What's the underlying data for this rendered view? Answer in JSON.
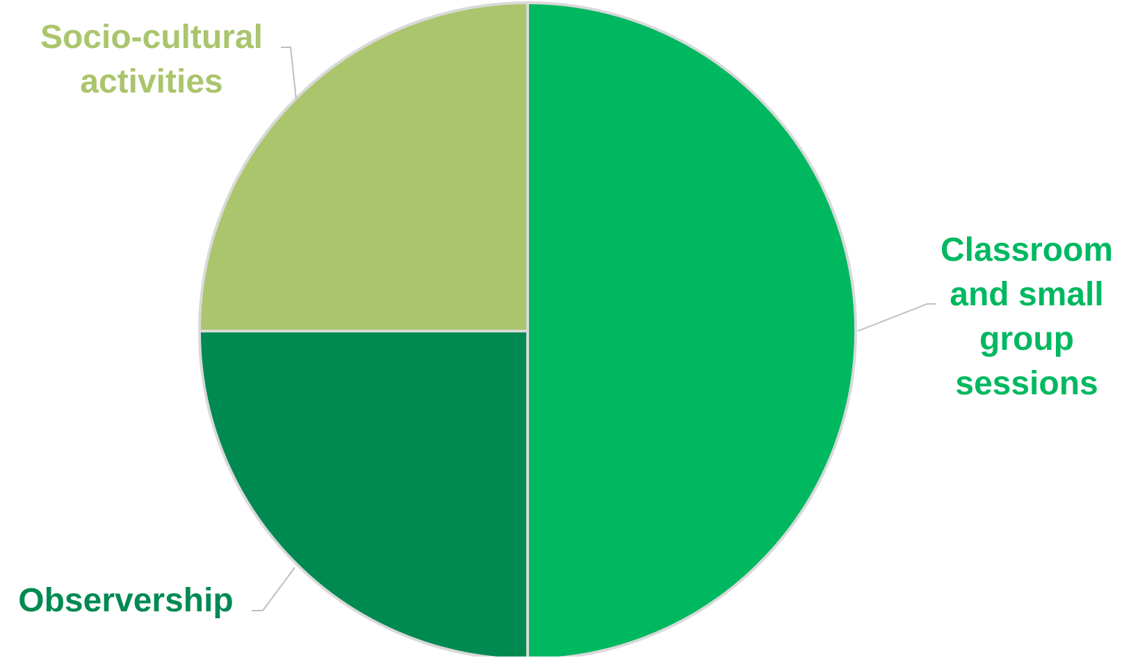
{
  "chart_data": {
    "type": "pie",
    "title": "",
    "start_angle_deg": 0,
    "direction": "clockwise",
    "show_legend": false,
    "slices": [
      {
        "label": "Classroom and small group sessions",
        "label_lines": [
          "Classroom",
          "and small",
          "group",
          "sessions"
        ],
        "value": 50,
        "color": "#00B860"
      },
      {
        "label": "Observership",
        "label_lines": [
          "Observership"
        ],
        "value": 25,
        "color": "#008A52"
      },
      {
        "label": "Socio-cultural activities",
        "label_lines": [
          "Socio-cultural",
          "activities"
        ],
        "value": 25,
        "color": "#AAC56C"
      }
    ],
    "colors": {
      "slice_border": "#D9D9D9",
      "leader_line": "#BFBFBF",
      "background": "#FFFFFF"
    }
  }
}
